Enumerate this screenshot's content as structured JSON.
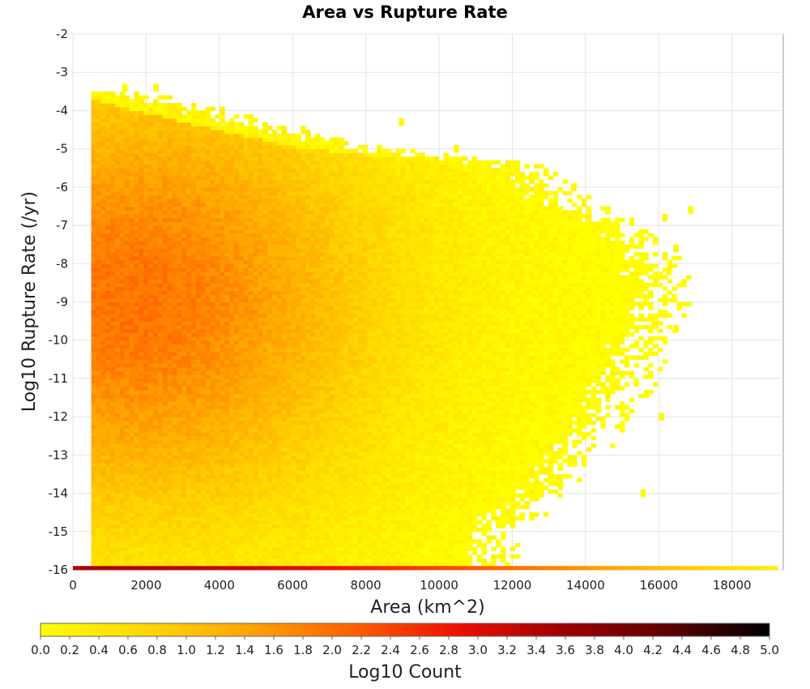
{
  "chart_data": {
    "type": "heatmap",
    "title": "Area vs Rupture Rate",
    "xlabel": "Area (km^2)",
    "ylabel": "Log10 Rupture Rate (/yr)",
    "xlim": [
      0,
      19400
    ],
    "ylim": [
      -16,
      -2
    ],
    "x_ticks": [
      "0",
      "2000",
      "4000",
      "6000",
      "8000",
      "10000",
      "12000",
      "14000",
      "16000",
      "18000"
    ],
    "y_ticks": [
      "-2",
      "-3",
      "-4",
      "-5",
      "-6",
      "-7",
      "-8",
      "-9",
      "-10",
      "-11",
      "-12",
      "-13",
      "-14",
      "-15",
      "-16"
    ],
    "grid": true,
    "colorbar": {
      "label": "Log10 Count",
      "range": [
        0.0,
        5.0
      ],
      "tick_labels": [
        "0.0",
        "0.2",
        "0.4",
        "0.6",
        "0.8",
        "1.0",
        "1.2",
        "1.4",
        "1.6",
        "1.8",
        "2.0",
        "2.2",
        "2.4",
        "2.6",
        "2.8",
        "3.0",
        "3.2",
        "3.4",
        "3.6",
        "3.8",
        "4.0",
        "4.2",
        "4.4",
        "4.6",
        "4.8",
        "5.0"
      ],
      "colors": [
        "#ffff00",
        "#ffd700",
        "#ffa500",
        "#ff6000",
        "#ee1000",
        "#a00000",
        "#600000",
        "#000000"
      ]
    },
    "bin_size": {
      "x": 130,
      "y": 0.1
    },
    "x_data_start": 500,
    "density": {
      "area_limit_by_rate": [
        {
          "log_rate": -3.6,
          "max_area": 1300
        },
        {
          "log_rate": -4.4,
          "max_area": 4700
        },
        {
          "log_rate": -5.0,
          "max_area": 7500
        },
        {
          "log_rate": -5.5,
          "max_area": 12000
        },
        {
          "log_rate": -6.5,
          "max_area": 13200
        },
        {
          "log_rate": -7.0,
          "max_area": 14600
        },
        {
          "log_rate": -8.0,
          "max_area": 15400
        },
        {
          "log_rate": -9.0,
          "max_area": 15800
        },
        {
          "log_rate": -10.0,
          "max_area": 15200
        },
        {
          "log_rate": -11.0,
          "max_area": 14800
        },
        {
          "log_rate": -12.0,
          "max_area": 14200
        },
        {
          "log_rate": -13.0,
          "max_area": 13400
        },
        {
          "log_rate": -14.0,
          "max_area": 12600
        },
        {
          "log_rate": -15.0,
          "max_area": 11200
        },
        {
          "log_rate": -15.9,
          "max_area": 10800
        }
      ],
      "peak": {
        "area": 1500,
        "log_rate": -9.0,
        "log_count": 1.95
      },
      "outliers": [
        {
          "area": 1350,
          "log_rate": -3.4
        },
        {
          "area": 2200,
          "log_rate": -3.4
        },
        {
          "area": 8900,
          "log_rate": -4.3
        },
        {
          "area": 10400,
          "log_rate": -5.0
        },
        {
          "area": 13600,
          "log_rate": -6.0
        },
        {
          "area": 16100,
          "log_rate": -6.8
        },
        {
          "area": 16800,
          "log_rate": -6.6
        },
        {
          "area": 16400,
          "log_rate": -7.6
        },
        {
          "area": 16200,
          "log_rate": -8.2
        },
        {
          "area": 15800,
          "log_rate": -9.6
        },
        {
          "area": 16400,
          "log_rate": -9.7
        },
        {
          "area": 15600,
          "log_rate": -11.4
        },
        {
          "area": 16000,
          "log_rate": -12.0
        },
        {
          "area": 15500,
          "log_rate": -14.0
        }
      ],
      "bottom_row": {
        "log_rate": -16,
        "x_start": 0,
        "x_end": 19200,
        "log_count_start": 3.5,
        "log_count_end": 0.3
      }
    }
  }
}
